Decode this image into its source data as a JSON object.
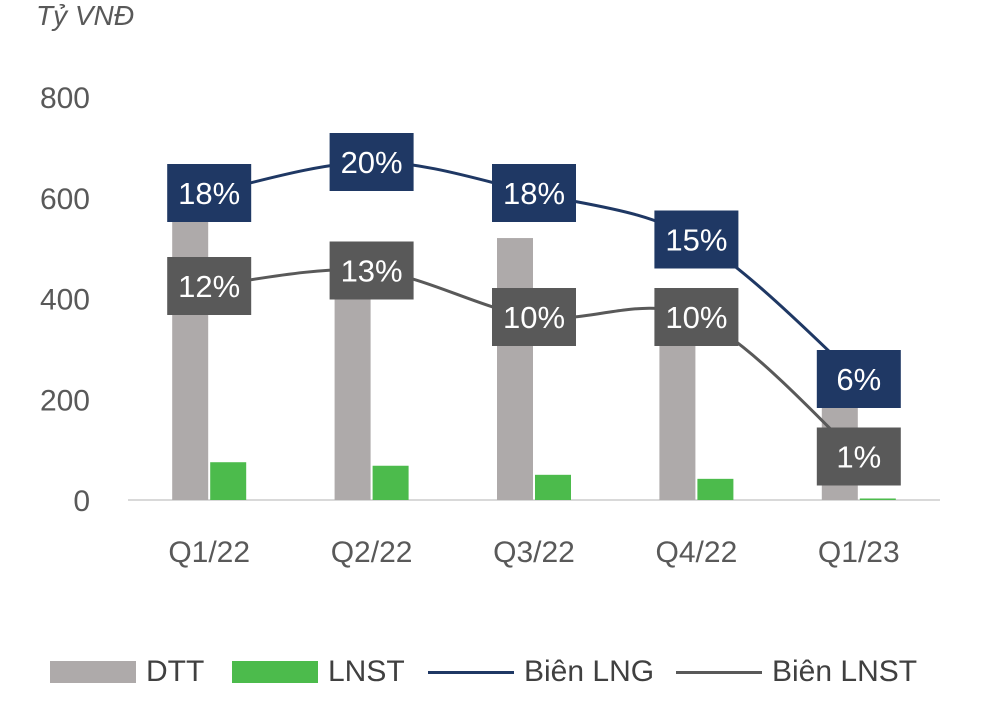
{
  "unit_label": "Tỷ VNĐ",
  "chart_data": {
    "type": "bar",
    "categories": [
      "Q1/22",
      "Q2/22",
      "Q3/22",
      "Q4/22",
      "Q1/23"
    ],
    "ylim": [
      0,
      800
    ],
    "yticks": [
      0,
      200,
      400,
      600,
      800
    ],
    "grid": false,
    "legend_position": "bottom",
    "series": [
      {
        "name": "DTT",
        "kind": "bar",
        "color": "#aeaaaa",
        "values": [
          555,
          470,
          520,
          390,
          250
        ]
      },
      {
        "name": "LNST",
        "kind": "bar",
        "color": "#4cbb4c",
        "values": [
          75,
          68,
          50,
          42,
          3
        ]
      }
    ],
    "margin_series": [
      {
        "name": "Biên LNG",
        "kind": "line",
        "color": "#1f3864",
        "label_bg": "#1f3864",
        "values": [
          18,
          20,
          18,
          15,
          6
        ],
        "labels": [
          "18%",
          "20%",
          "18%",
          "15%",
          "6%"
        ]
      },
      {
        "name": "Biên LNST",
        "kind": "line",
        "color": "#595959",
        "label_bg": "#595959",
        "values": [
          12,
          13,
          10,
          10,
          1
        ],
        "labels": [
          "12%",
          "13%",
          "10%",
          "10%",
          "1%"
        ]
      }
    ]
  }
}
